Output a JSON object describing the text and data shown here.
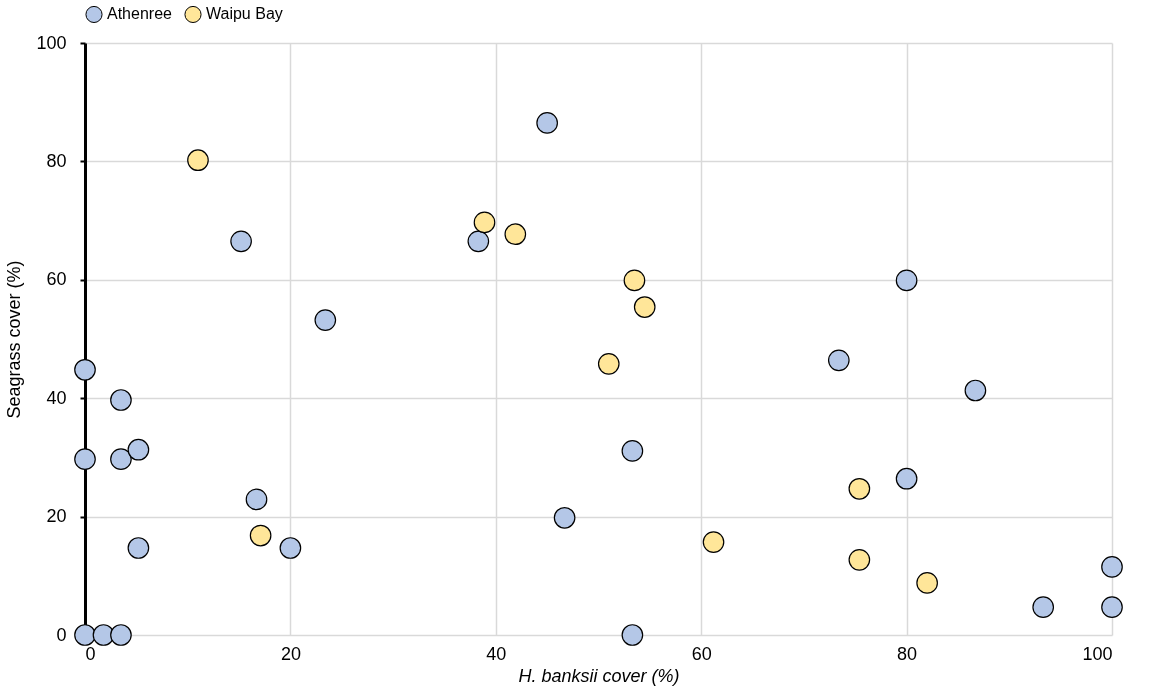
{
  "chart_data": {
    "type": "scatter",
    "xlabel": "H. banksii cover (%)",
    "ylabel": "Seagrass cover (%)",
    "xlim": [
      0,
      100
    ],
    "xticks": [
      0,
      20,
      40,
      60,
      80,
      100
    ],
    "ylim": [
      0,
      100
    ],
    "yticks": [
      0,
      20,
      40,
      60,
      80,
      100
    ],
    "grid": true,
    "legend": "top",
    "marker": "circle",
    "series": [
      {
        "name": "Athenree",
        "color": "#b4c7e7",
        "x": [
          0,
          1.8,
          3.5,
          0,
          0,
          3.5,
          3.5,
          5.2,
          5.2,
          15.2,
          16.7,
          20,
          23.4,
          38.3,
          45,
          46.7,
          53.3,
          53.3,
          73.4,
          80,
          80,
          86.7,
          93.3,
          100,
          100
        ],
        "values": [
          0,
          0,
          0,
          29.7,
          44.8,
          39.7,
          29.7,
          31.3,
          14.7,
          66.5,
          22.9,
          14.7,
          53.2,
          66.5,
          86.5,
          19.8,
          31.1,
          0,
          46.4,
          59.9,
          26.4,
          41.3,
          4.7,
          11.5,
          4.7
        ]
      },
      {
        "name": "Waipu Bay",
        "color": "#ffe699",
        "x": [
          11,
          17.1,
          38.9,
          41.9,
          51,
          53.5,
          54.5,
          61.2,
          75.4,
          75.4,
          82
        ],
        "values": [
          80.2,
          16.8,
          69.7,
          67.7,
          45.8,
          59.9,
          55.4,
          15.7,
          24.7,
          12.7,
          8.8
        ]
      }
    ]
  }
}
